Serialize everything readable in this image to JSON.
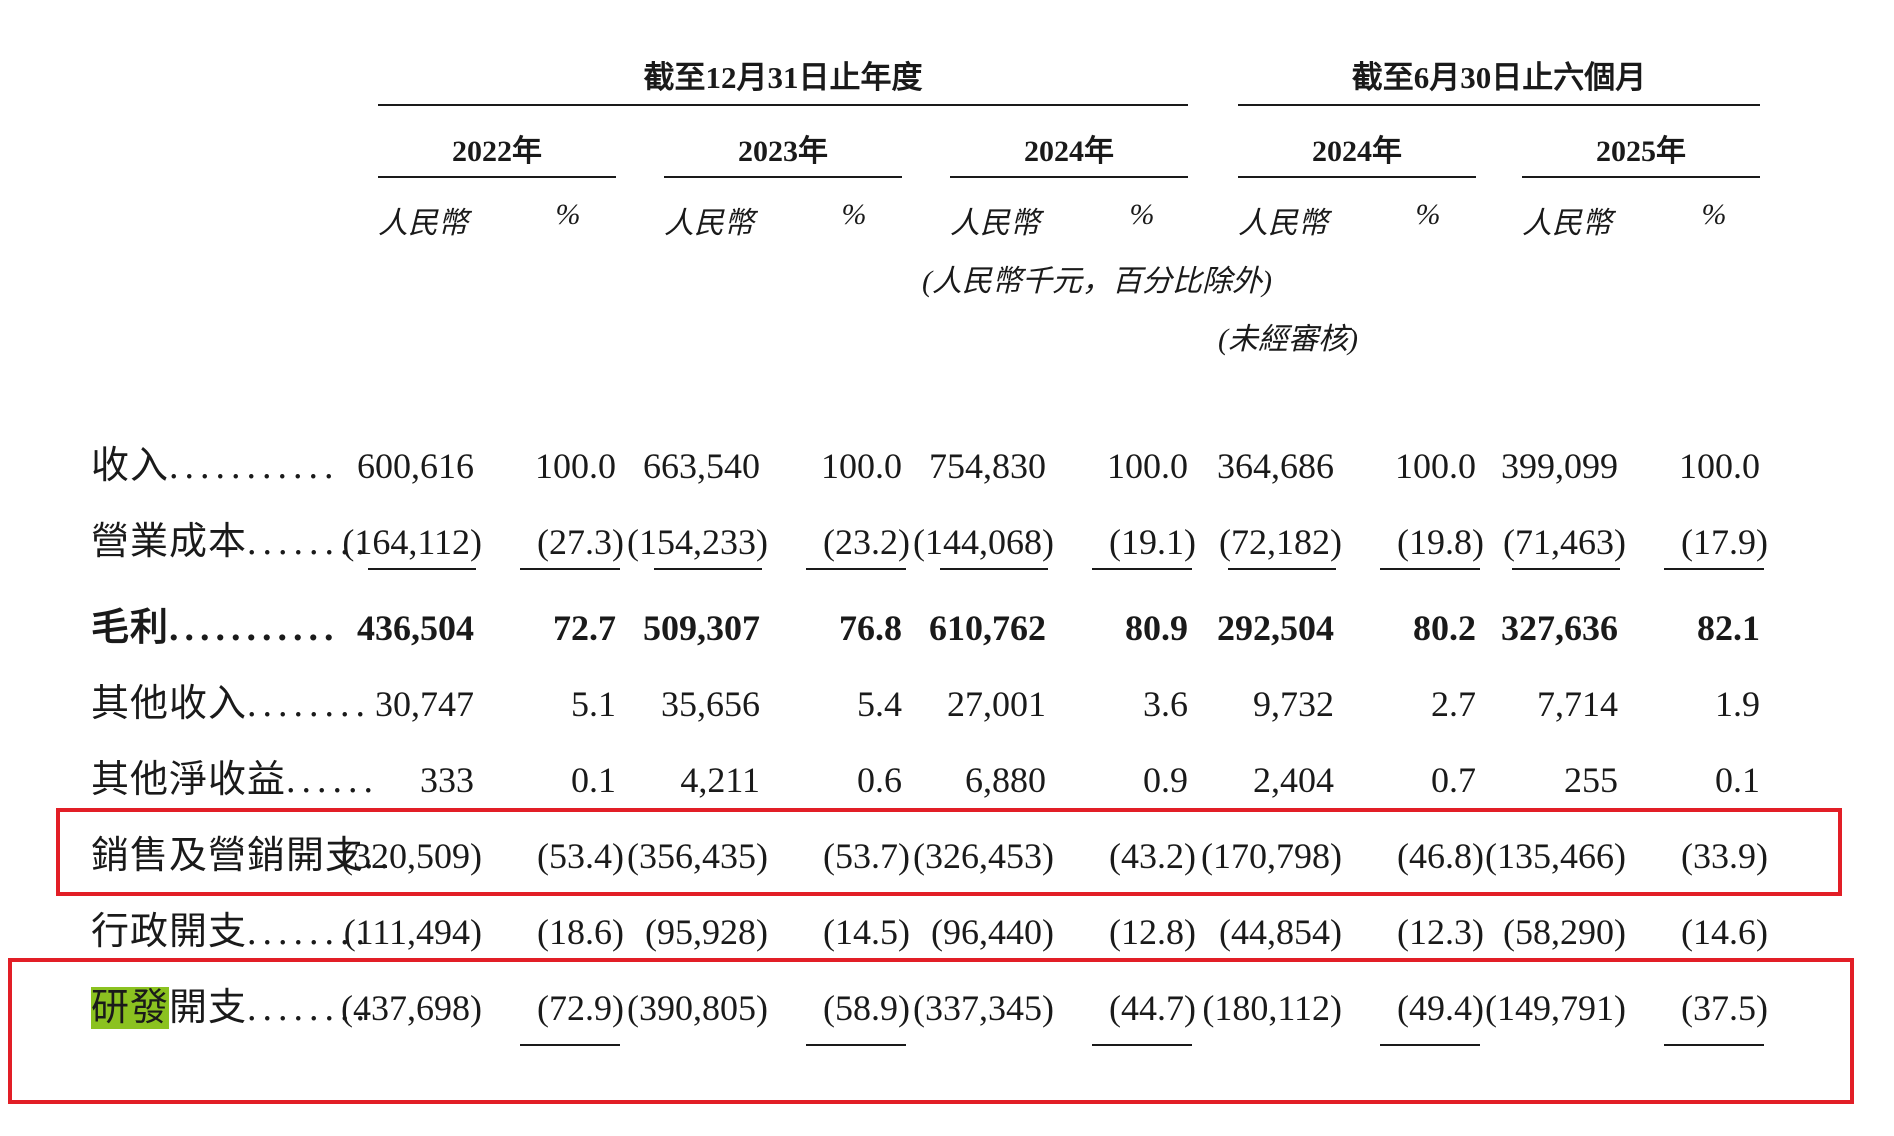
{
  "header": {
    "group_annual": "截至12月31日止年度",
    "group_interim": "截至6月30日止六個月",
    "years": [
      "2022年",
      "2023年",
      "2024年",
      "2024年",
      "2025年"
    ],
    "unit_amount": "人民幣",
    "unit_percent": "%",
    "note_units": "(人民幣千元，百分比除外)",
    "note_unaudited": "(未經審核)"
  },
  "rows": [
    {
      "label": "收入",
      "dots": "...........",
      "values": [
        "600,616",
        "100.0",
        "663,540",
        "100.0",
        "754,830",
        "100.0",
        "364,686",
        "100.0",
        "399,099",
        "100.0"
      ]
    },
    {
      "label": "營業成本",
      "dots": "........",
      "values": [
        "(164,112)",
        "(27.3)",
        "(154,233)",
        "(23.2)",
        "(144,068)",
        "(19.1)",
        "(72,182)",
        "(19.8)",
        "(71,463)",
        "(17.9)"
      ]
    },
    {
      "label": "毛利",
      "dots": "...........",
      "values": [
        "436,504",
        "72.7",
        "509,307",
        "76.8",
        "610,762",
        "80.9",
        "292,504",
        "80.2",
        "327,636",
        "82.1"
      ]
    },
    {
      "label": "其他收入",
      "dots": "........",
      "values": [
        "30,747",
        "5.1",
        "35,656",
        "5.4",
        "27,001",
        "3.6",
        "9,732",
        "2.7",
        "7,714",
        "1.9"
      ]
    },
    {
      "label": "其他淨收益",
      "dots": "......",
      "values": [
        "333",
        "0.1",
        "4,211",
        "0.6",
        "6,880",
        "0.9",
        "2,404",
        "0.7",
        "255",
        "0.1"
      ]
    },
    {
      "label": "銷售及營銷開支",
      "dots": "..",
      "values": [
        "(320,509)",
        "(53.4)",
        "(356,435)",
        "(53.7)",
        "(326,453)",
        "(43.2)",
        "(170,798)",
        "(46.8)",
        "(135,466)",
        "(33.9)"
      ]
    },
    {
      "label": "行政開支",
      "dots": "........",
      "values": [
        "(111,494)",
        "(18.6)",
        "(95,928)",
        "(14.5)",
        "(96,440)",
        "(12.8)",
        "(44,854)",
        "(12.3)",
        "(58,290)",
        "(14.6)"
      ]
    },
    {
      "label_highlight": "研發",
      "label_rest": "開支",
      "dots": "........",
      "values": [
        "(437,698)",
        "(72.9)",
        "(390,805)",
        "(58.9)",
        "(337,345)",
        "(44.7)",
        "(180,112)",
        "(49.4)",
        "(149,791)",
        "(37.5)"
      ]
    }
  ],
  "colors": {
    "highlight_box": "#e21e26",
    "text_highlight": "#8bc220"
  }
}
